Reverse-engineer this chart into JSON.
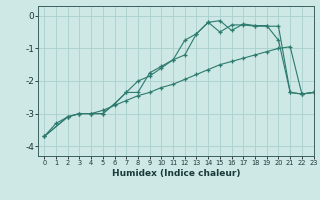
{
  "xlabel": "Humidex (Indice chaleur)",
  "xlim": [
    -0.5,
    23
  ],
  "ylim": [
    -4.3,
    0.3
  ],
  "background_color": "#cde8e5",
  "grid_color": "#aacfcc",
  "line_color": "#2d7a6e",
  "x_ticks": [
    0,
    1,
    2,
    3,
    4,
    5,
    6,
    7,
    8,
    9,
    10,
    11,
    12,
    13,
    14,
    15,
    16,
    17,
    18,
    19,
    20,
    21,
    22,
    23
  ],
  "y_ticks": [
    0,
    -1,
    -2,
    -3,
    -4
  ],
  "line1_x": [
    0,
    1,
    2,
    3,
    4,
    5,
    6,
    7,
    8,
    9,
    10,
    11,
    12,
    13,
    14,
    15,
    16,
    17,
    18,
    19,
    20,
    21,
    22,
    23
  ],
  "line1_y": [
    -3.7,
    -3.3,
    -3.1,
    -3.0,
    -3.0,
    -2.9,
    -2.75,
    -2.6,
    -2.45,
    -2.35,
    -2.2,
    -2.1,
    -1.95,
    -1.8,
    -1.65,
    -1.5,
    -1.4,
    -1.3,
    -1.2,
    -1.1,
    -1.0,
    -0.95,
    -2.4,
    -2.35
  ],
  "line2_x": [
    0,
    2,
    3,
    4,
    5,
    6,
    7,
    8,
    9,
    10,
    11,
    12,
    13,
    14,
    15,
    16,
    17,
    18,
    19,
    20,
    21,
    22,
    23
  ],
  "line2_y": [
    -3.7,
    -3.1,
    -3.0,
    -3.0,
    -3.0,
    -2.7,
    -2.35,
    -2.35,
    -1.75,
    -1.55,
    -1.35,
    -0.75,
    -0.55,
    -0.2,
    -0.15,
    -0.45,
    -0.25,
    -0.3,
    -0.3,
    -0.75,
    -2.35,
    -2.4,
    -2.35
  ],
  "line3_x": [
    0,
    2,
    3,
    4,
    5,
    6,
    7,
    8,
    9,
    10,
    11,
    12,
    13,
    14,
    15,
    16,
    17,
    18,
    19,
    20,
    21,
    22,
    23
  ],
  "line3_y": [
    -3.7,
    -3.1,
    -3.0,
    -3.0,
    -3.0,
    -2.7,
    -2.35,
    -2.0,
    -1.85,
    -1.6,
    -1.35,
    -1.2,
    -0.55,
    -0.2,
    -0.5,
    -0.28,
    -0.28,
    -0.32,
    -0.32,
    -0.32,
    -2.35,
    -2.4,
    -2.35
  ]
}
